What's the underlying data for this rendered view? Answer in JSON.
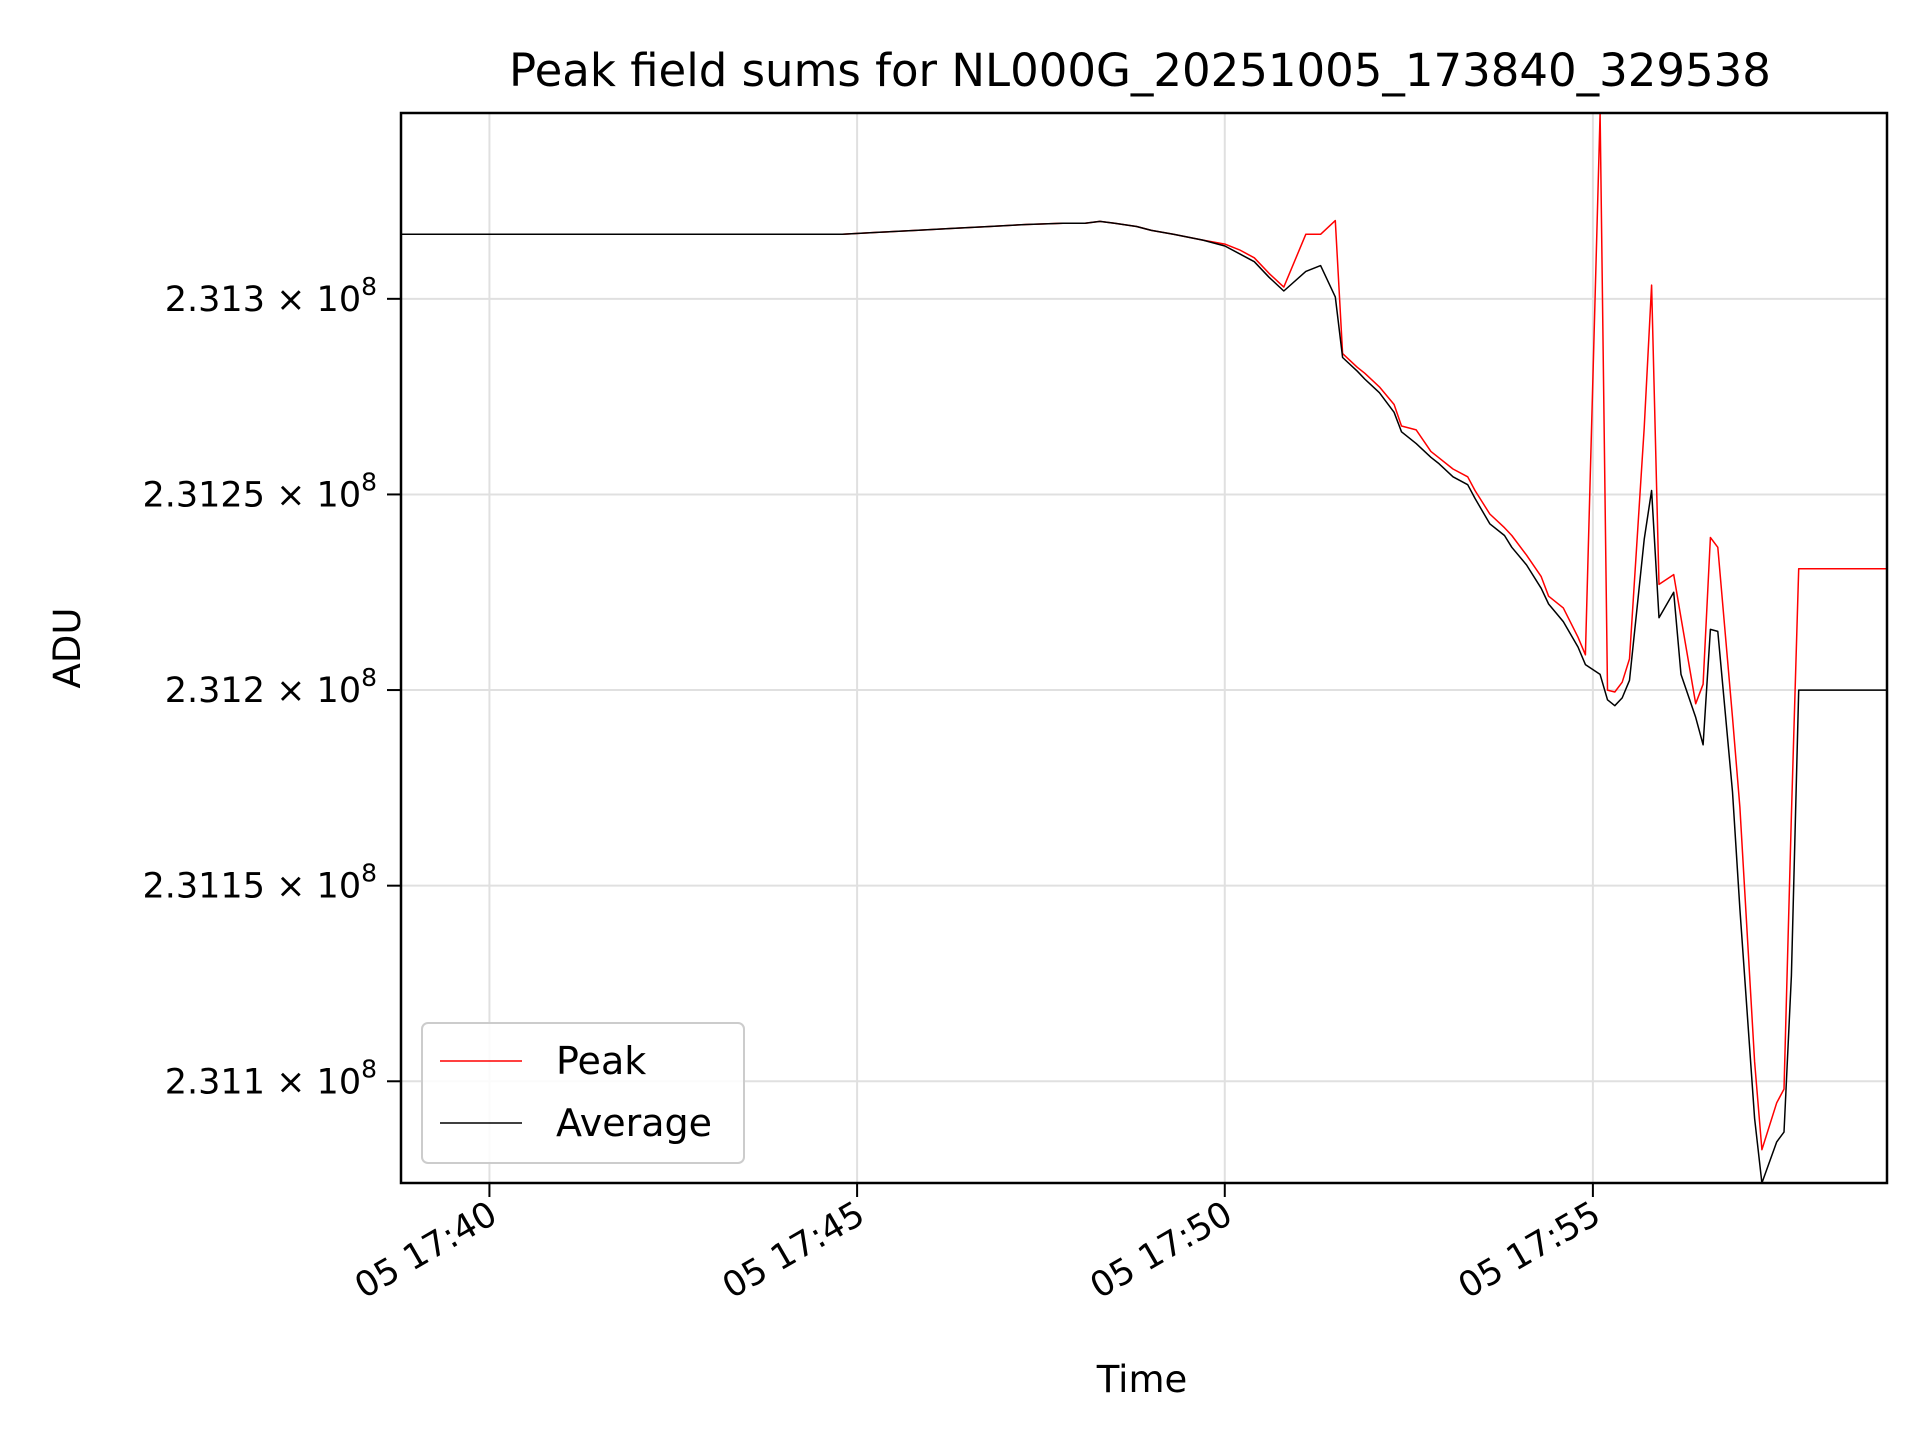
{
  "chart_data": {
    "type": "line",
    "title": "Peak field sums for NL000G_20251005_173840_329538",
    "xlabel": "Time",
    "ylabel": "ADU",
    "x_tick_labels": [
      "05 17:40",
      "05 17:45",
      "05 17:50",
      "05 17:55"
    ],
    "x_tick_minutes": [
      17.6667,
      17.75,
      17.8333,
      17.9167
    ],
    "y_ticks": [
      {
        "value": 231100000,
        "mantissa": "2.311"
      },
      {
        "value": 231150000,
        "mantissa": "2.3115"
      },
      {
        "value": 231200000,
        "mantissa": "2.312"
      },
      {
        "value": 231250000,
        "mantissa": "2.3125"
      },
      {
        "value": 231300000,
        "mantissa": "2.313"
      }
    ],
    "y_tick_suffix": "× 10",
    "y_tick_exponent": "8",
    "xlim_minutes": [
      38.8,
      59.0
    ],
    "ylim": [
      231074000,
      231347500
    ],
    "grid": true,
    "legend_position": "lower-left",
    "colors": {
      "peak": "#ff0000",
      "average": "#000000",
      "grid": "#e0e0e0"
    },
    "x_minutes": [
      38.8,
      39.8,
      40.8,
      41.8,
      42.8,
      43.8,
      44.8,
      45.3,
      45.8,
      46.3,
      46.8,
      47.3,
      47.8,
      48.1,
      48.3,
      48.5,
      48.8,
      49.0,
      49.3,
      49.7,
      50.0,
      50.2,
      50.4,
      50.6,
      50.8,
      51.1,
      51.3,
      51.5,
      51.6,
      51.8,
      51.9,
      52.1,
      52.3,
      52.4,
      52.6,
      52.8,
      52.9,
      53.1,
      53.3,
      53.4,
      53.6,
      53.8,
      53.9,
      54.1,
      54.3,
      54.4,
      54.6,
      54.8,
      54.9,
      55.1,
      55.2,
      55.3,
      55.4,
      55.5,
      55.7,
      55.8,
      55.9,
      56.1,
      56.2,
      56.4,
      56.5,
      56.6,
      56.7,
      56.9,
      57.0,
      57.2,
      57.3,
      57.5,
      57.6,
      57.7,
      57.8,
      58.0,
      58.1,
      58.2,
      58.4,
      58.6,
      58.9,
      59.0
    ],
    "series": [
      {
        "name": "Peak",
        "values": [
          231316500,
          231316500,
          231316500,
          231316500,
          231316500,
          231316500,
          231316500,
          231317000,
          231317500,
          231318000,
          231318500,
          231319000,
          231319300,
          231319300,
          231319800,
          231319300,
          231318500,
          231317500,
          231316500,
          231315000,
          231314000,
          231312500,
          231310500,
          231306500,
          231303000,
          231316500,
          231316500,
          231320000,
          231286000,
          231282500,
          231281000,
          231277500,
          231273000,
          231267500,
          231266500,
          231261000,
          231259500,
          231256500,
          231254500,
          231251000,
          231245000,
          231241500,
          231239500,
          231234500,
          231229000,
          231224000,
          231221000,
          231213500,
          231209000,
          231347500,
          231200000,
          231199500,
          231202000,
          231208000,
          231267000,
          231303500,
          231227000,
          231229500,
          231218500,
          231196500,
          231201500,
          231239000,
          231236500,
          231193000,
          231170000,
          231105000,
          231082500,
          231094500,
          231098000,
          231168000,
          231231000,
          231231000,
          231231000,
          231231000,
          231231000,
          231231000,
          231231000,
          231231000
        ]
      },
      {
        "name": "Average",
        "values": [
          231316500,
          231316500,
          231316500,
          231316500,
          231316500,
          231316500,
          231316500,
          231317000,
          231317500,
          231318000,
          231318500,
          231319000,
          231319300,
          231319300,
          231319800,
          231319300,
          231318500,
          231317500,
          231316500,
          231315000,
          231313500,
          231311500,
          231309500,
          231305500,
          231302000,
          231307000,
          231308500,
          231300500,
          231285000,
          231281500,
          231279500,
          231276000,
          231271000,
          231266000,
          231263000,
          231259500,
          231258000,
          231254500,
          231252500,
          231249000,
          231242500,
          231239500,
          231236500,
          231232000,
          231226000,
          231222000,
          231217500,
          231211000,
          231206500,
          231204000,
          231197500,
          231196000,
          231198000,
          231202500,
          231238500,
          231251000,
          231218500,
          231225000,
          231204000,
          231193000,
          231186000,
          231215500,
          231215000,
          231174000,
          231144000,
          231090500,
          231074000,
          231084500,
          231087000,
          231127000,
          231200000,
          231200000,
          231200000,
          231200000,
          231200000,
          231200000,
          231200000,
          231200000
        ]
      }
    ]
  }
}
